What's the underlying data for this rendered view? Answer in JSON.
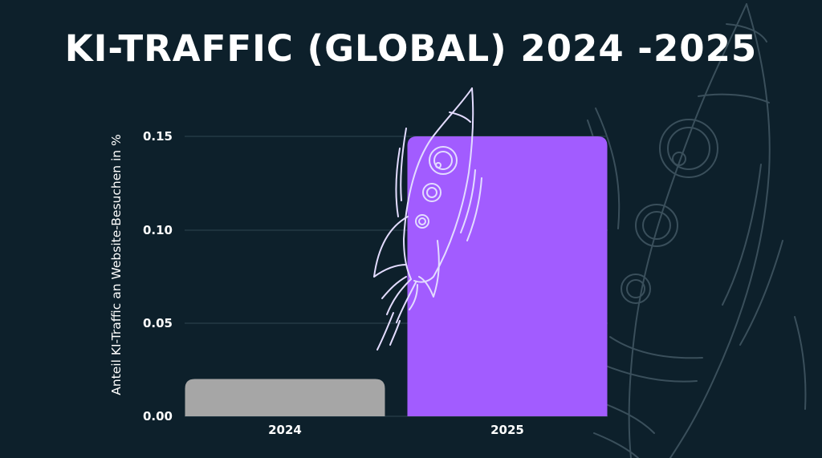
{
  "header": {
    "title": "KI-TRAFFIC (GLOBAL) 2024 -2025"
  },
  "colors": {
    "background": "#0d202b",
    "bar_2024": "#a6a6a6",
    "bar_2025": "#a25cff",
    "gridline": "#2f4652",
    "text": "#ffffff",
    "sketch_light": "#e3dcff",
    "sketch_faint": "#3a4f5b"
  },
  "icons": {
    "rocket_sketch": "rocket-icon",
    "background_rocket_sketch": "background-rocket-icon"
  },
  "chart_data": {
    "type": "bar",
    "categories": [
      "2024",
      "2025"
    ],
    "values": [
      0.02,
      0.15
    ],
    "title": "KI-TRAFFIC (GLOBAL) 2024 -2025",
    "xlabel": "",
    "ylabel": "Anteil KI-Traffic an Website-Besuchen in %",
    "ylim": [
      0,
      0.15
    ],
    "yticks": [
      "0.00",
      "0.05",
      "0.10",
      "0.15"
    ],
    "grid": true,
    "legend": "none"
  }
}
